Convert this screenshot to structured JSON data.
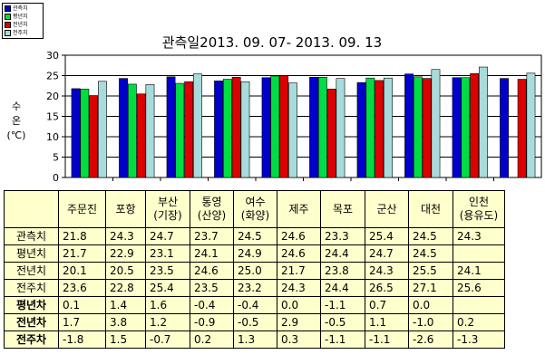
{
  "chart_data": {
    "type": "bar",
    "title": "관측일2013. 09. 07-  2013. 09. 13",
    "ylabel": [
      "수",
      "온",
      "(℃)"
    ],
    "ylim": [
      0,
      30
    ],
    "yticks": [
      "0",
      "5",
      "10",
      "15",
      "20",
      "25",
      "30"
    ],
    "grid": true,
    "legend_position": "top-left",
    "categories": [
      "주문진",
      "포항",
      "부산 (기장)",
      "통영 (산양)",
      "여수 (화양)",
      "제주",
      "목포",
      "군산",
      "대천",
      "인천 (용유도)"
    ],
    "series": [
      {
        "name": "관측치",
        "color": "#0000cc",
        "values": [
          21.8,
          24.3,
          24.7,
          23.7,
          24.5,
          24.6,
          23.3,
          25.4,
          24.5,
          24.3
        ]
      },
      {
        "name": "평년치",
        "color": "#00dd44",
        "values": [
          21.7,
          22.9,
          23.1,
          24.1,
          24.9,
          24.6,
          24.4,
          24.7,
          24.5,
          null
        ]
      },
      {
        "name": "전년치",
        "color": "#dd0000",
        "values": [
          20.1,
          20.5,
          23.5,
          24.6,
          25.0,
          21.7,
          23.8,
          24.3,
          25.5,
          24.1
        ]
      },
      {
        "name": "전주치",
        "color": "#a8dcdc",
        "values": [
          23.6,
          22.8,
          25.4,
          23.5,
          23.2,
          24.3,
          24.4,
          26.5,
          27.1,
          25.6
        ]
      }
    ]
  },
  "table": {
    "header": [
      "",
      "주문진",
      "포항",
      "부산\n(기장)",
      "통영\n(산양)",
      "여수\n(화양)",
      "제주",
      "목포",
      "군산",
      "대천",
      "인천\n(용유도)"
    ],
    "rows": [
      {
        "label": "관측치",
        "bold": false,
        "cells": [
          "21.8",
          "24.3",
          "24.7",
          "23.7",
          "24.5",
          "24.6",
          "23.3",
          "25.4",
          "24.5",
          "24.3"
        ]
      },
      {
        "label": "평년치",
        "bold": false,
        "cells": [
          "21.7",
          "22.9",
          "23.1",
          "24.1",
          "24.9",
          "24.6",
          "24.4",
          "24.7",
          "24.5",
          ""
        ]
      },
      {
        "label": "전년치",
        "bold": false,
        "cells": [
          "20.1",
          "20.5",
          "23.5",
          "24.6",
          "25.0",
          "21.7",
          "23.8",
          "24.3",
          "25.5",
          "24.1"
        ]
      },
      {
        "label": "전주치",
        "bold": false,
        "cells": [
          "23.6",
          "22.8",
          "25.4",
          "23.5",
          "23.2",
          "24.3",
          "24.4",
          "26.5",
          "27.1",
          "25.6"
        ]
      },
      {
        "label": "평년차",
        "bold": true,
        "cells": [
          "0.1",
          "1.4",
          "1.6",
          "-0.4",
          "-0.4",
          "0.0",
          "-1.1",
          "0.7",
          "0.0",
          ""
        ]
      },
      {
        "label": "전년차",
        "bold": true,
        "cells": [
          "1.7",
          "3.8",
          "1.2",
          "-0.9",
          "-0.5",
          "2.9",
          "-0.5",
          "1.1",
          "-1.0",
          "0.2"
        ]
      },
      {
        "label": "전주차",
        "bold": true,
        "cells": [
          "-1.8",
          "1.5",
          "-0.7",
          "0.2",
          "1.3",
          "0.3",
          "-1.1",
          "-1.1",
          "-2.6",
          "-1.3"
        ]
      }
    ]
  }
}
